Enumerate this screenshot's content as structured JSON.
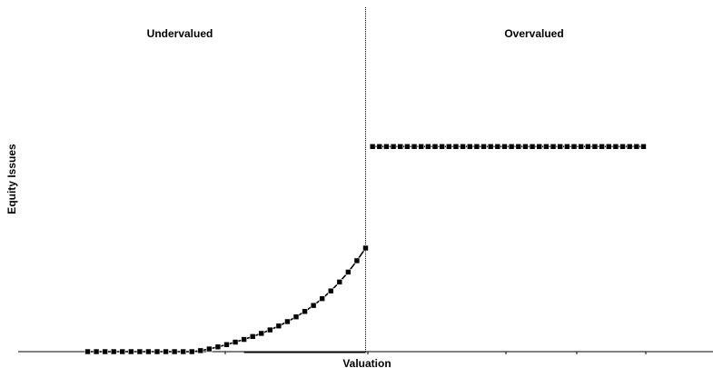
{
  "chart_data": {
    "type": "scatter",
    "title": "",
    "xlabel": "Valuation",
    "ylabel": "Equity Issues",
    "annotations": [
      "Undervalued",
      "Overvalued"
    ],
    "xlim": [
      -1,
      1
    ],
    "ylim": [
      0,
      1
    ],
    "grid": false,
    "legend": "none",
    "divider_x": 0,
    "series": [
      {
        "x": [
          -0.8,
          -0.775,
          -0.75,
          -0.725,
          -0.7,
          -0.675,
          -0.65,
          -0.625,
          -0.6,
          -0.575,
          -0.55,
          -0.525,
          -0.5,
          -0.475,
          -0.45,
          -0.425,
          -0.4,
          -0.375,
          -0.35,
          -0.325,
          -0.3,
          -0.275,
          -0.25,
          -0.225,
          -0.2,
          -0.175,
          -0.15,
          -0.125,
          -0.1,
          -0.075,
          -0.05,
          -0.025,
          0
        ],
        "y": [
          0,
          0,
          0,
          0,
          0,
          0,
          0,
          0,
          0,
          0,
          0,
          0,
          0,
          0.005,
          0.013,
          0.023,
          0.034,
          0.046,
          0.059,
          0.073,
          0.088,
          0.105,
          0.124,
          0.145,
          0.168,
          0.194,
          0.223,
          0.256,
          0.293,
          0.336,
          0.384,
          0.439,
          0.5
        ]
      },
      {
        "x": [
          0.02,
          0.04,
          0.06,
          0.08,
          0.1,
          0.12,
          0.14,
          0.16,
          0.18,
          0.2,
          0.22,
          0.24,
          0.26,
          0.28,
          0.3,
          0.32,
          0.34,
          0.36,
          0.38,
          0.4,
          0.42,
          0.44,
          0.46,
          0.48,
          0.5,
          0.52,
          0.54,
          0.56,
          0.58,
          0.6,
          0.62,
          0.64,
          0.66,
          0.68,
          0.7,
          0.72,
          0.74,
          0.76,
          0.78,
          0.8
        ],
        "y": [
          0.99,
          0.99,
          0.99,
          0.99,
          0.99,
          0.99,
          0.99,
          0.99,
          0.99,
          0.99,
          0.99,
          0.99,
          0.99,
          0.99,
          0.99,
          0.99,
          0.99,
          0.99,
          0.99,
          0.99,
          0.99,
          0.99,
          0.99,
          0.99,
          0.99,
          0.99,
          0.99,
          0.99,
          0.99,
          0.99,
          0.99,
          0.99,
          0.99,
          0.99,
          0.99,
          0.99,
          0.99,
          0.99,
          0.99,
          0.99
        ]
      }
    ]
  }
}
